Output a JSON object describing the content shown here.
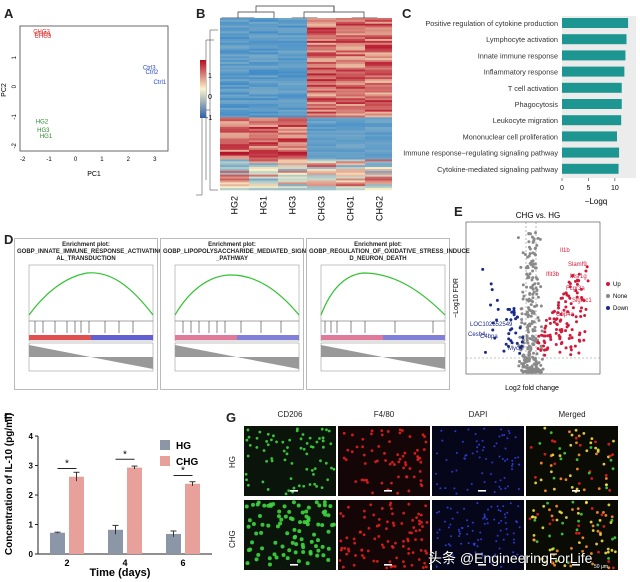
{
  "panel_labels": [
    "A",
    "B",
    "C",
    "D",
    "E",
    "F",
    "G"
  ],
  "panelA": {
    "xlabel": "PC1",
    "ylabel": "PC2",
    "xticks": [
      "-2",
      "-1",
      "0",
      "1",
      "2",
      "3"
    ],
    "yticks": [
      "1",
      "0",
      "-1",
      "-2"
    ],
    "points": [
      {
        "label": "CHG2",
        "x": -1.6,
        "y": 1.85,
        "color": "#d9312b"
      },
      {
        "label": "CHG1",
        "x": -1.55,
        "y": 1.75,
        "color": "#d9312b"
      },
      {
        "label": "CHG3",
        "x": -1.55,
        "y": 1.68,
        "color": "#d9312b"
      },
      {
        "label": "Ctrl3",
        "x": 2.55,
        "y": 0.6,
        "color": "#2b4bbd"
      },
      {
        "label": "Ctrl2",
        "x": 2.65,
        "y": 0.45,
        "color": "#2b4bbd"
      },
      {
        "label": "Ctrl1",
        "x": 2.95,
        "y": 0.1,
        "color": "#2b4bbd"
      },
      {
        "label": "HG2",
        "x": -1.5,
        "y": -1.25,
        "color": "#2a8a2a"
      },
      {
        "label": "HG3",
        "x": -1.45,
        "y": -1.55,
        "color": "#2a8a2a"
      },
      {
        "label": "HG1",
        "x": -1.35,
        "y": -1.75,
        "color": "#2a8a2a"
      }
    ]
  },
  "panelB": {
    "legend_ticks": [
      "1",
      "0",
      "-1"
    ],
    "columns": [
      "HG2",
      "HG1",
      "HG3",
      "CHG3",
      "CHG1",
      "CHG2"
    ]
  },
  "panelC": {
    "xlabel": "−Logq",
    "xticks": [
      "0",
      "5",
      "10"
    ],
    "bar_color": "#1d9590",
    "terms": [
      {
        "label": "Positive regulation of cytokine production",
        "value": 12.5
      },
      {
        "label": "Lymphocyte activation",
        "value": 12.2
      },
      {
        "label": "Innate immune response",
        "value": 12.0
      },
      {
        "label": "Inflammatory response",
        "value": 11.8
      },
      {
        "label": "T cell activation",
        "value": 11.3
      },
      {
        "label": "Phagocytosis",
        "value": 11.3
      },
      {
        "label": "Leukocyte migration",
        "value": 11.2
      },
      {
        "label": "Mononuclear cell proliferation",
        "value": 10.4
      },
      {
        "label": "Immune response−regulating signaling pathway",
        "value": 10.8
      },
      {
        "label": "Cytokine-mediated signaling pathway",
        "value": 10.7
      }
    ]
  },
  "panelD": {
    "plots": [
      {
        "title": "Enrichment plot:\nGOBP_INNATE_IMMUNE_RESPONSE_ACTIVATING_SIGN\nAL_TRANSDUCTION"
      },
      {
        "title": "Enrichment plot:\nGOBP_LIPOPOLYSACCHARIDE_MEDIATED_SIGNALING\n_PATHWAY"
      },
      {
        "title": "Enrichment plot:\nGOBP_REGULATION_OF_OXIDATIVE_STRESS_INDUCE\nD_NEURON_DEATH"
      }
    ]
  },
  "panelE": {
    "title": "CHG vs. HG",
    "xlabel": "Log2 fold change",
    "ylabel": "−Log10 FDR",
    "legend": [
      {
        "label": "Up",
        "color": "#d01c3a"
      },
      {
        "label": "None",
        "color": "#888888"
      },
      {
        "label": "Down",
        "color": "#1a2a8a"
      }
    ],
    "up_genes": [
      "Il1b",
      "Slamf9",
      "Msr1g",
      "Fcgr3a",
      "Siglec1",
      "Ifit3b",
      "Gbp4a"
    ],
    "down_genes": [
      "LOC102552549",
      "Cesh4",
      "C4bpa",
      "Mycn"
    ]
  },
  "panelF": {
    "ylabel": "Concentration of IL-10 (pg/ml)",
    "xlabel": "Time (days)",
    "legend": [
      {
        "label": "HG",
        "color": "#8b97a6"
      },
      {
        "label": "CHG",
        "color": "#e8a09a"
      }
    ],
    "chart_data": {
      "type": "bar",
      "categories": [
        "2",
        "4",
        "6"
      ],
      "series": [
        {
          "name": "HG",
          "values": [
            0.72,
            0.82,
            0.68
          ]
        },
        {
          "name": "CHG",
          "values": [
            2.62,
            2.93,
            2.38
          ]
        }
      ],
      "errors": {
        "HG": [
          0.02,
          0.15,
          0.1
        ],
        "CHG": [
          0.15,
          0.05,
          0.07
        ]
      },
      "ylim": [
        0,
        4
      ],
      "yticks": [
        "0",
        "1",
        "2",
        "3",
        "4"
      ],
      "significance": [
        "*",
        "*",
        "*"
      ]
    }
  },
  "panelG": {
    "columns": [
      "CD206",
      "F4/80",
      "DAPI",
      "Merged"
    ],
    "rows": [
      "HG",
      "CHG"
    ],
    "scale_text": "50 μm"
  },
  "watermark": "头条 @EngineeringForLife"
}
